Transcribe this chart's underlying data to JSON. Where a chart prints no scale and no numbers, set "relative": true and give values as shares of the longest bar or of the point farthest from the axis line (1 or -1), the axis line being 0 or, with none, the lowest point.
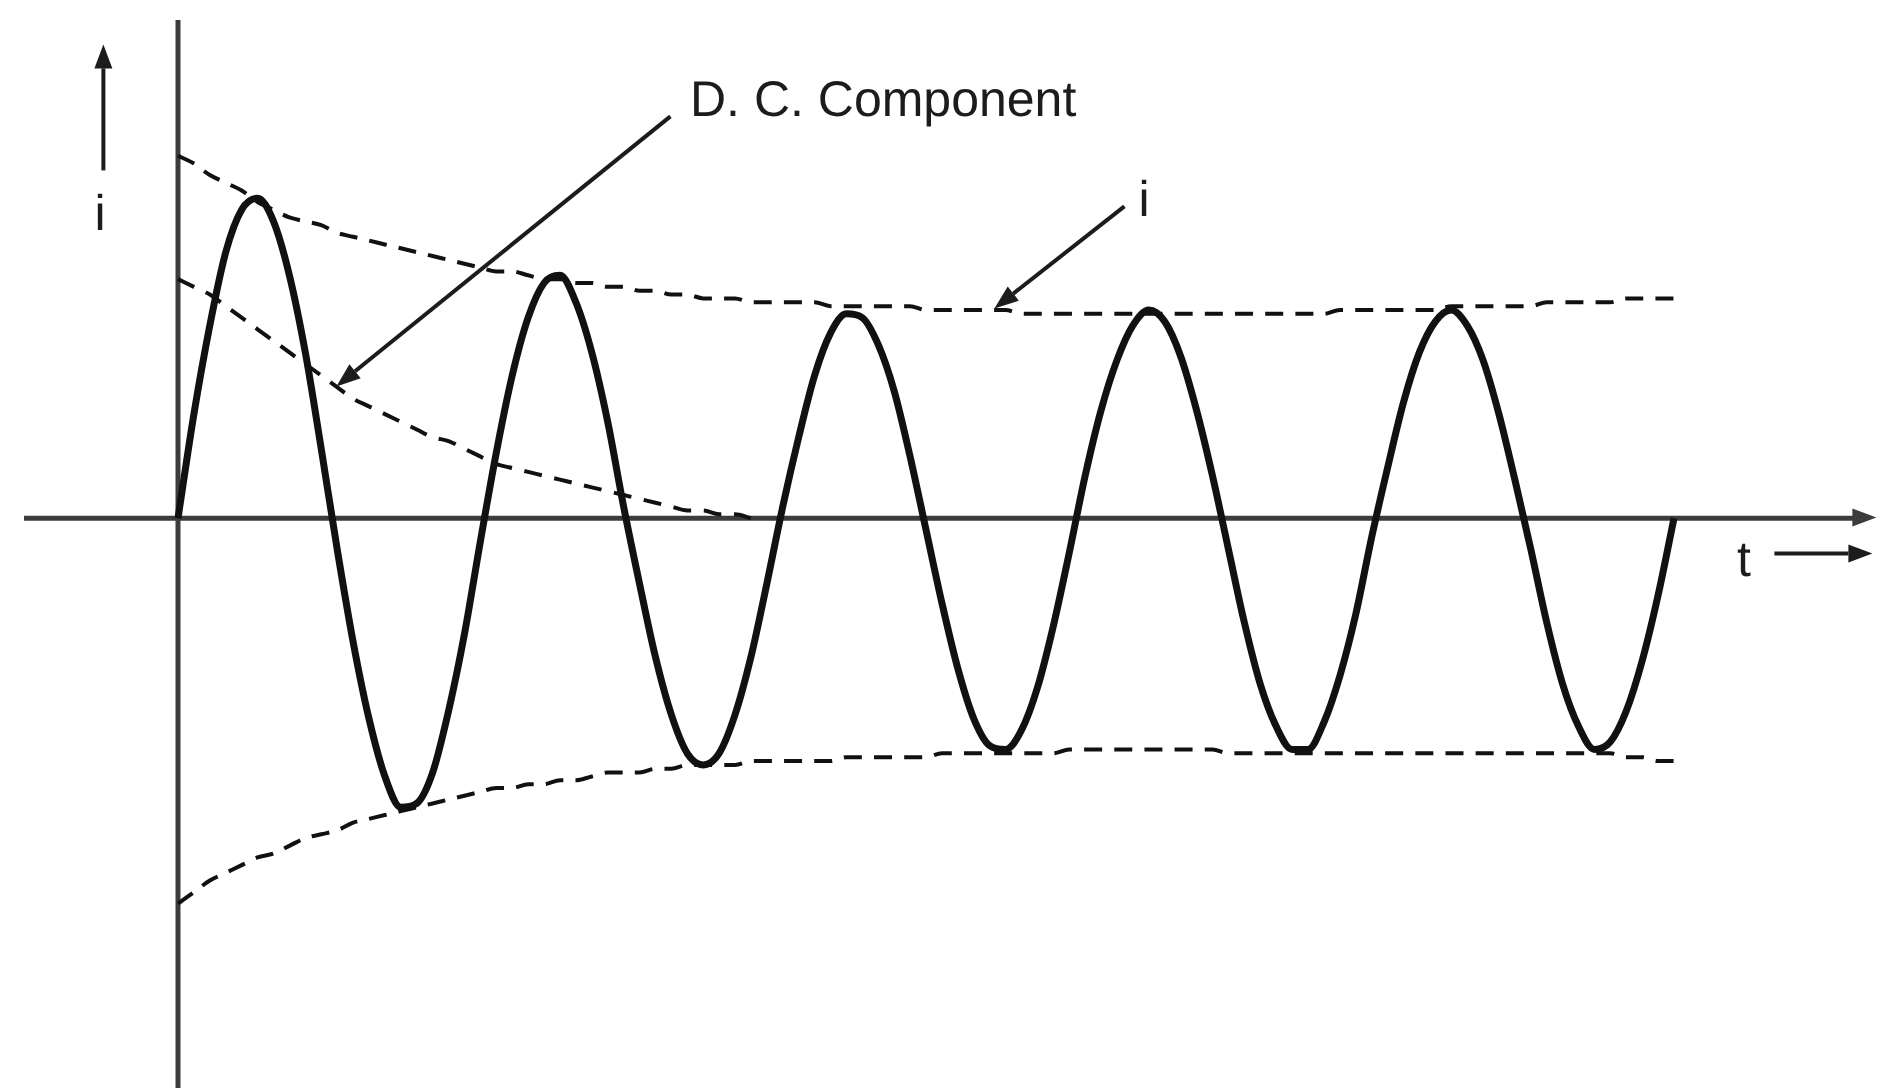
{
  "chart_data": {
    "type": "line",
    "xlabel": "t",
    "ylabel": "i",
    "relative": true,
    "categories": [
      null,
      null,
      null,
      null,
      null,
      null,
      null,
      null,
      null,
      null,
      null,
      null,
      null,
      null,
      null,
      null,
      null,
      null,
      null,
      null,
      null,
      null,
      null,
      null,
      null,
      null,
      null,
      null,
      null,
      null,
      null,
      null,
      null,
      null,
      null,
      null,
      null,
      null,
      null,
      null,
      null,
      null,
      null,
      null,
      null,
      null,
      null,
      null,
      null,
      null,
      null,
      null,
      null,
      null,
      null,
      null,
      null,
      null,
      null,
      null,
      null,
      null,
      null,
      null,
      null,
      null,
      null,
      null,
      null,
      null,
      null,
      null,
      null,
      null,
      null,
      null,
      null,
      null,
      null,
      null,
      null,
      null,
      null,
      null,
      null,
      null,
      null,
      null,
      null,
      null,
      null,
      null,
      null,
      null,
      null
    ],
    "series": [
      {
        "color": "#111111",
        "line_style": "solid",
        "values": [
          0,
          0.27,
          0.5,
          0.69,
          0.8,
          0.83,
          0.77,
          0.63,
          0.43,
          0.18,
          -0.08,
          -0.32,
          -0.52,
          -0.67,
          -0.75,
          -0.74,
          -0.66,
          -0.5,
          -0.3,
          -0.06,
          0.17,
          0.37,
          0.52,
          0.61,
          0.63,
          0.56,
          0.43,
          0.25,
          0.03,
          -0.17,
          -0.36,
          -0.51,
          -0.61,
          -0.64,
          -0.61,
          -0.51,
          -0.36,
          -0.17,
          0.03,
          0.21,
          0.37,
          0.48,
          0.53,
          0.52,
          0.45,
          0.33,
          0.16,
          -0.03,
          -0.22,
          -0.39,
          -0.52,
          -0.59,
          -0.6,
          -0.55,
          -0.44,
          -0.28,
          -0.09,
          0.11,
          0.28,
          0.41,
          0.5,
          0.54,
          0.51,
          0.42,
          0.28,
          0.11,
          -0.08,
          -0.27,
          -0.43,
          -0.54,
          -0.6,
          -0.6,
          -0.53,
          -0.41,
          -0.25,
          -0.05,
          0.13,
          0.3,
          0.43,
          0.51,
          0.54,
          0.5,
          0.41,
          0.27,
          0.1,
          -0.08,
          -0.27,
          -0.43,
          -0.54,
          -0.6,
          -0.58,
          -0.5,
          -0.37,
          -0.2,
          0
        ]
      },
      {
        "color": "#111111",
        "line_style": "dashed",
        "values": [
          0.94,
          0.92,
          0.89,
          0.87,
          0.85,
          0.82,
          0.8,
          0.78,
          0.77,
          0.76,
          0.74,
          0.73,
          0.72,
          0.71,
          0.7,
          0.69,
          0.68,
          0.67,
          0.66,
          0.65,
          0.64,
          0.64,
          0.63,
          0.62,
          0.62,
          0.61,
          0.61,
          0.6,
          0.6,
          0.59,
          0.59,
          0.58,
          0.58,
          0.57,
          0.57,
          0.57,
          0.56,
          0.56,
          0.56,
          0.56,
          0.56,
          0.55,
          0.55,
          0.55,
          0.55,
          0.55,
          0.55,
          0.54,
          0.54,
          0.54,
          0.54,
          0.54,
          0.54,
          0.53,
          0.53,
          0.53,
          0.53,
          0.53,
          0.53,
          0.53,
          0.53,
          0.53,
          0.53,
          0.53,
          0.53,
          0.53,
          0.53,
          0.53,
          0.53,
          0.53,
          0.53,
          0.53,
          0.53,
          0.54,
          0.54,
          0.54,
          0.54,
          0.54,
          0.54,
          0.54,
          0.55,
          0.55,
          0.55,
          0.55,
          0.55,
          0.55,
          0.56,
          0.56,
          0.56,
          0.56,
          0.56,
          0.57,
          0.57,
          0.57,
          0.57
        ]
      },
      {
        "color": "#111111",
        "line_style": "dashed",
        "values": [
          -1.0,
          -0.97,
          -0.94,
          -0.92,
          -0.9,
          -0.88,
          -0.87,
          -0.85,
          -0.83,
          -0.82,
          -0.81,
          -0.79,
          -0.78,
          -0.77,
          -0.76,
          -0.75,
          -0.74,
          -0.73,
          -0.72,
          -0.71,
          -0.7,
          -0.7,
          -0.69,
          -0.69,
          -0.68,
          -0.68,
          -0.67,
          -0.66,
          -0.66,
          -0.66,
          -0.65,
          -0.65,
          -0.64,
          -0.64,
          -0.64,
          -0.64,
          -0.63,
          -0.63,
          -0.63,
          -0.63,
          -0.63,
          -0.63,
          -0.62,
          -0.62,
          -0.62,
          -0.62,
          -0.62,
          -0.62,
          -0.61,
          -0.61,
          -0.61,
          -0.61,
          -0.61,
          -0.61,
          -0.61,
          -0.61,
          -0.6,
          -0.6,
          -0.6,
          -0.6,
          -0.6,
          -0.6,
          -0.6,
          -0.6,
          -0.6,
          -0.6,
          -0.61,
          -0.61,
          -0.61,
          -0.61,
          -0.61,
          -0.61,
          -0.61,
          -0.61,
          -0.61,
          -0.61,
          -0.61,
          -0.61,
          -0.61,
          -0.61,
          -0.61,
          -0.61,
          -0.61,
          -0.61,
          -0.61,
          -0.61,
          -0.61,
          -0.61,
          -0.61,
          -0.61,
          -0.61,
          -0.62,
          -0.62,
          -0.63,
          -0.63
        ]
      },
      {
        "color": "#111111",
        "line_style": "dashed",
        "values": [
          0.62,
          0.6,
          0.58,
          0.55,
          0.52,
          0.49,
          0.46,
          0.43,
          0.4,
          0.37,
          0.34,
          0.31,
          0.29,
          0.27,
          0.25,
          0.23,
          0.21,
          0.2,
          0.18,
          0.16,
          0.14,
          0.13,
          0.12,
          0.11,
          0.1,
          0.09,
          0.08,
          0.07,
          0.06,
          0.05,
          0.04,
          0.03,
          0.02,
          0.02,
          0.01,
          0.01,
          0,
          null,
          null,
          null,
          null,
          null,
          null,
          null,
          null,
          null,
          null,
          null,
          null,
          null,
          null,
          null,
          null,
          null,
          null,
          null,
          null,
          null,
          null,
          null,
          null,
          null,
          null,
          null,
          null,
          null,
          null,
          null,
          null,
          null,
          null,
          null,
          null,
          null,
          null,
          null,
          null,
          null,
          null,
          null,
          null,
          null,
          null,
          null,
          null,
          null,
          null,
          null,
          null,
          null,
          null,
          null,
          null,
          null,
          null
        ]
      }
    ],
    "annotations": [
      "D. C. Component",
      "i"
    ]
  }
}
